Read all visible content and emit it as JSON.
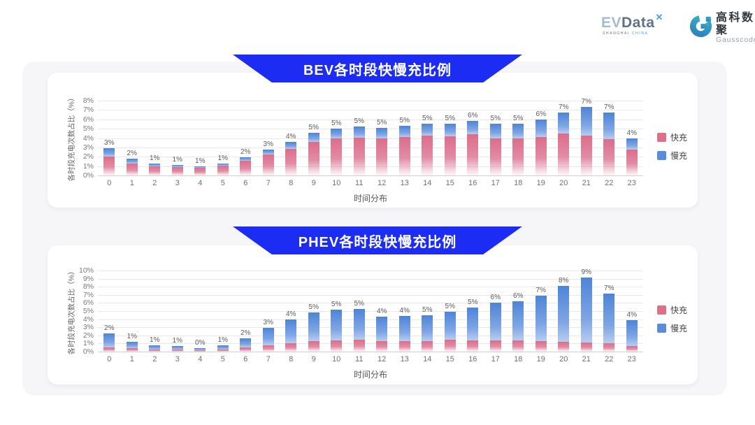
{
  "header": {
    "evdata_logo": {
      "part1": "EV",
      "part2": "Data",
      "sup": "✕",
      "sub1": "SHANGHAI",
      "sub2": "CHINA"
    },
    "gausscode_logo": {
      "cn": "高科数聚",
      "en": "Gausscode"
    }
  },
  "colors": {
    "banner_blue": "#1c2cf2",
    "fast_pink": "#dd7089",
    "slow_blue": "#5b8cda",
    "panel_bg": "#f6f6f8",
    "card_bg": "#ffffff"
  },
  "chart_data": [
    {
      "type": "bar",
      "stacked": true,
      "title": "BEV各时段快慢充比例",
      "xlabel": "时间分布",
      "ylabel": "各时段充电次数占比（%）",
      "ylim": [
        0,
        8
      ],
      "ytick_step": 1,
      "ytick_suffix": "%",
      "grid": true,
      "legend_position": "right",
      "categories": [
        0,
        1,
        2,
        3,
        4,
        5,
        6,
        7,
        8,
        9,
        10,
        11,
        12,
        13,
        14,
        15,
        16,
        17,
        18,
        19,
        20,
        21,
        22,
        23
      ],
      "bar_labels": [
        "3%",
        "2%",
        "1%",
        "1%",
        "1%",
        "1%",
        "2%",
        "3%",
        "4%",
        "5%",
        "5%",
        "5%",
        "5%",
        "5%",
        "5%",
        "5%",
        "6%",
        "5%",
        "5%",
        "6%",
        "7%",
        "7%",
        "7%",
        "4%"
      ],
      "series": [
        {
          "name": "快充",
          "color": "#dd7089",
          "values": [
            2.0,
            1.3,
            1.0,
            0.9,
            0.85,
            1.05,
            1.55,
            2.25,
            2.85,
            3.6,
            3.95,
            4.05,
            4.0,
            4.1,
            4.3,
            4.2,
            4.4,
            4.0,
            4.0,
            4.1,
            4.5,
            4.3,
            3.9,
            2.8
          ]
        },
        {
          "name": "慢充",
          "color": "#5b8cda",
          "values": [
            0.9,
            0.5,
            0.3,
            0.2,
            0.15,
            0.25,
            0.4,
            0.55,
            0.75,
            0.95,
            1.05,
            1.15,
            1.1,
            1.2,
            1.2,
            1.3,
            1.4,
            1.5,
            1.5,
            1.9,
            2.2,
            3.0,
            2.8,
            1.2
          ]
        }
      ]
    },
    {
      "type": "bar",
      "stacked": true,
      "title": "PHEV各时段快慢充比例",
      "xlabel": "时间分布",
      "ylabel": "各时段充电次数占比（%）",
      "ylim": [
        0,
        10
      ],
      "ytick_step": 1,
      "ytick_suffix": "%",
      "grid": true,
      "legend_position": "right",
      "categories": [
        0,
        1,
        2,
        3,
        4,
        5,
        6,
        7,
        8,
        9,
        10,
        11,
        12,
        13,
        14,
        15,
        16,
        17,
        18,
        19,
        20,
        21,
        22,
        23
      ],
      "bar_labels": [
        "2%",
        "1%",
        "1%",
        "1%",
        "0%",
        "1%",
        "2%",
        "3%",
        "4%",
        "5%",
        "5%",
        "5%",
        "4%",
        "4%",
        "5%",
        "5%",
        "5%",
        "6%",
        "6%",
        "7%",
        "8%",
        "9%",
        "7%",
        "4%"
      ],
      "series": [
        {
          "name": "快充",
          "color": "#dd7089",
          "values": [
            0.5,
            0.4,
            0.3,
            0.25,
            0.15,
            0.3,
            0.5,
            0.8,
            1.0,
            1.3,
            1.4,
            1.5,
            1.3,
            1.3,
            1.3,
            1.5,
            1.4,
            1.4,
            1.4,
            1.3,
            1.2,
            1.1,
            1.0,
            0.7
          ]
        },
        {
          "name": "慢充",
          "color": "#5b8cda",
          "values": [
            1.7,
            0.8,
            0.5,
            0.4,
            0.3,
            0.5,
            1.1,
            2.1,
            3.0,
            3.5,
            3.8,
            3.8,
            3.0,
            3.1,
            3.2,
            3.4,
            4.0,
            4.6,
            4.8,
            5.6,
            6.9,
            8.0,
            6.2,
            3.2
          ]
        }
      ]
    }
  ]
}
